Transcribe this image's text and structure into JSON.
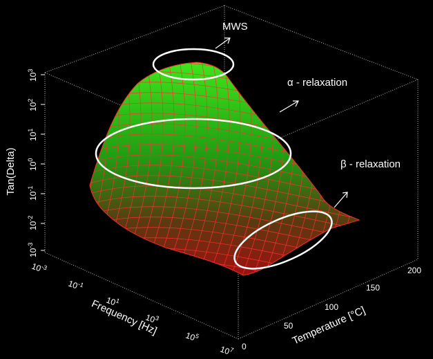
{
  "chart_data": {
    "type": "surface",
    "title": "",
    "zlabel": "Tan(Delta)",
    "xlabel": "Frequency [Hz]",
    "ylabel": "Temperature [°C]",
    "z_scale": "log",
    "x_scale": "log",
    "z_ticks": [
      {
        "base": "10",
        "exp": "3"
      },
      {
        "base": "10",
        "exp": "2"
      },
      {
        "base": "10",
        "exp": "1"
      },
      {
        "base": "10",
        "exp": "0"
      },
      {
        "base": "10",
        "exp": "-1"
      },
      {
        "base": "10",
        "exp": "-2"
      },
      {
        "base": "10",
        "exp": "-3"
      }
    ],
    "x_ticks": [
      {
        "base": "10",
        "exp": "-3"
      },
      {
        "base": "10",
        "exp": "-1"
      },
      {
        "base": "10",
        "exp": "1"
      },
      {
        "base": "10",
        "exp": "3"
      },
      {
        "base": "10",
        "exp": "5"
      },
      {
        "base": "10",
        "exp": "7"
      }
    ],
    "y_ticks": [
      "0",
      "50",
      "100",
      "150",
      "200"
    ],
    "xlim": [
      0.001,
      10000000
    ],
    "ylim": [
      0,
      200
    ],
    "zlim": [
      0.001,
      1000
    ],
    "annotations": [
      {
        "text": "MWS"
      },
      {
        "text": "α - relaxation"
      },
      {
        "text": "β - relaxation"
      }
    ],
    "colors": {
      "background": "#000000",
      "surface_high": "#3ddc1f",
      "surface_low": "#b01212",
      "mesh": "#ff2020",
      "ellipse": "#ffffff",
      "box": "#bbbbbb"
    }
  }
}
